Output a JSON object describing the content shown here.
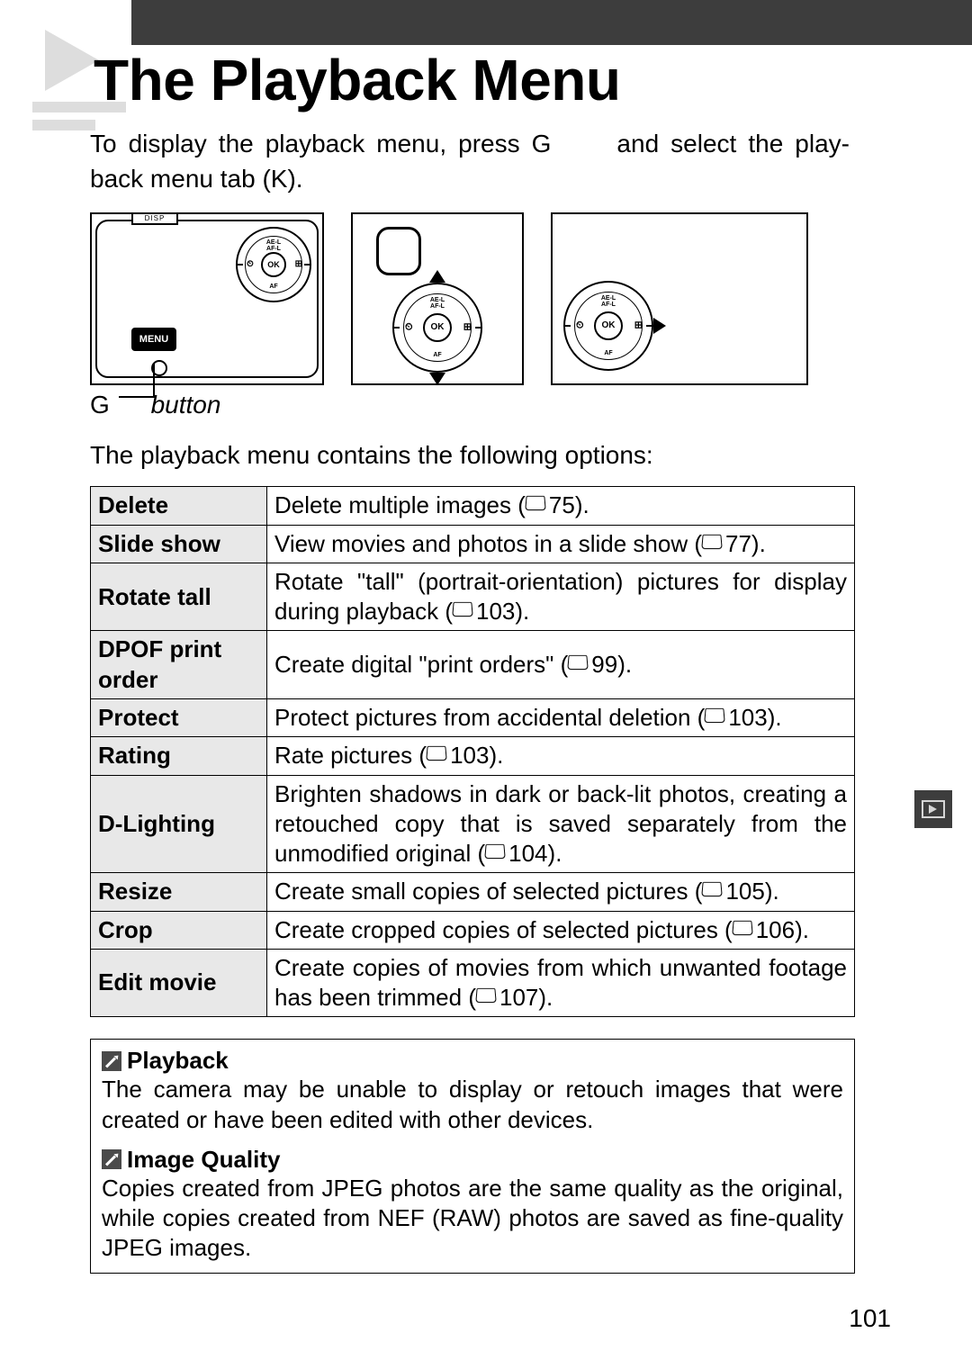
{
  "page": {
    "title": "The Playback Menu",
    "intro_before_G": "To display the playback menu, press ",
    "intro_G": "G",
    "intro_mid": " and select the play-back menu tab (",
    "intro_K": "K",
    "intro_after": ").",
    "g_button_label_G": "G",
    "g_button_label_text": "button",
    "subhead": "The playback menu contains the following options:",
    "page_number": "101"
  },
  "diagram_labels": {
    "disp": "DISP",
    "menu": "MENU",
    "ok": "OK",
    "ae_af": "AE-L\nAF-L",
    "af": "AF",
    "timer": "⏲",
    "exp": "⊞"
  },
  "table": [
    {
      "name": "Delete",
      "desc_pre": "Delete multiple images (",
      "page": "75",
      "desc_post": ")."
    },
    {
      "name": "Slide show",
      "desc_pre": "View movies and photos in a slide show (",
      "page": "77",
      "desc_post": ")."
    },
    {
      "name": "Rotate tall",
      "desc_pre": "Rotate \"tall\" (portrait-orientation) pictures for display during playback (",
      "page": "103",
      "desc_post": ")."
    },
    {
      "name": "DPOF print order",
      "desc_pre": "Create digital \"print orders\" (",
      "page": "99",
      "desc_post": ")."
    },
    {
      "name": "Protect",
      "desc_pre": "Protect pictures from accidental deletion (",
      "page": "103",
      "desc_post": ")."
    },
    {
      "name": "Rating",
      "desc_pre": "Rate pictures (",
      "page": "103",
      "desc_post": ")."
    },
    {
      "name": "D-Lighting",
      "desc_pre": "Brighten shadows in dark or back-lit photos, creating a retouched copy that is saved separately from the unmodified original (",
      "page": "104",
      "desc_post": ")."
    },
    {
      "name": "Resize",
      "desc_pre": "Create small copies of selected pictures (",
      "page": "105",
      "desc_post": ")."
    },
    {
      "name": "Crop",
      "desc_pre": "Create cropped copies of selected pictures (",
      "page": "106",
      "desc_post": ")."
    },
    {
      "name": "Edit movie",
      "desc_pre": "Create copies of movies from which unwanted footage has been trimmed (",
      "page": "107",
      "desc_post": ")."
    }
  ],
  "notes": {
    "playback_head": "Playback",
    "playback_body": "The camera may be unable to display or retouch images that were created or have been edited with other devices.",
    "iq_head": "Image Quality",
    "iq_body": "Copies created from JPEG photos are the same quality as the original, while copies created from NEF (RAW) photos are saved as fine-quality JPEG images."
  }
}
